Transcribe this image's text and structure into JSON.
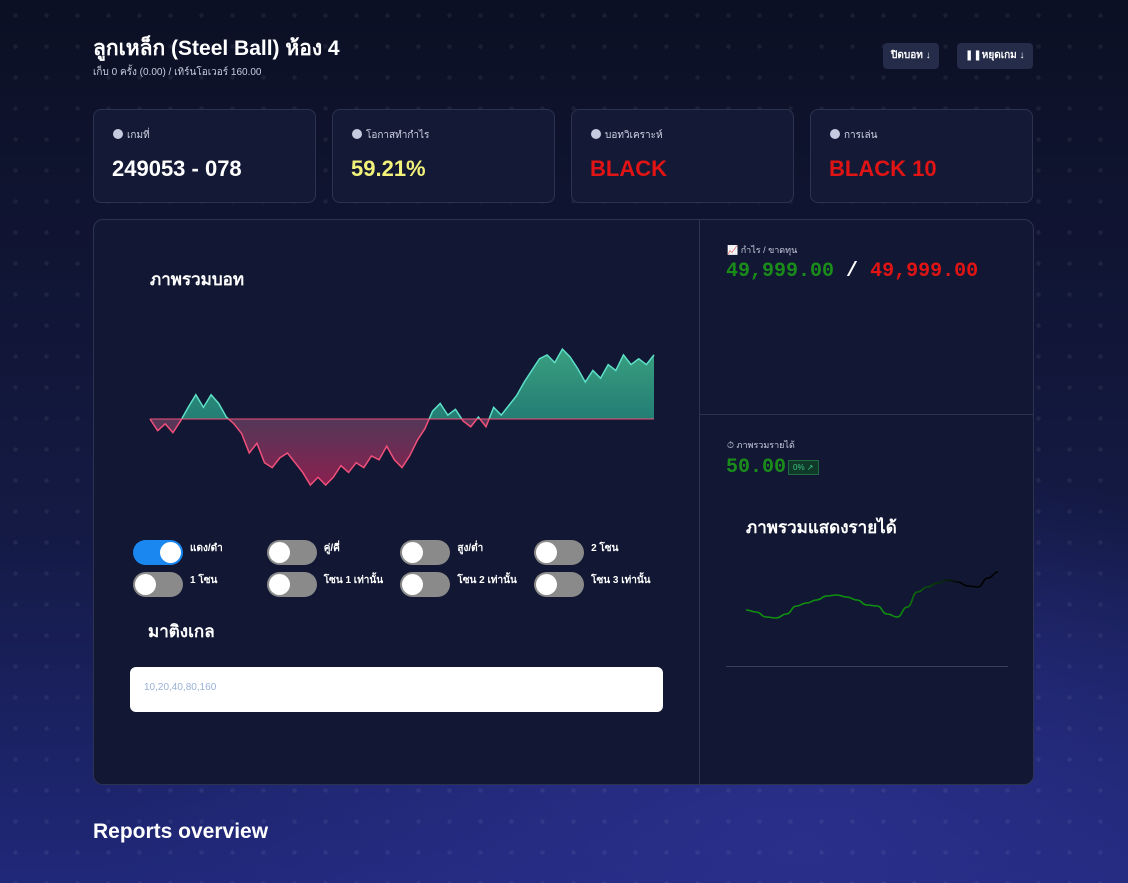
{
  "header": {
    "title": "ลูกเหล็ก (Steel Ball) ห้อง 4",
    "subtitle": "เก็บ 0 ครั้ง (0.00) / เทิร์นโอเวอร์ 160.00",
    "buttons": [
      "ปิดบอท",
      "หยุดเกม"
    ]
  },
  "cards": [
    {
      "label": "เกมที่",
      "value": "249053 - 078",
      "color": "#ffffff"
    },
    {
      "label": "โอกาสทำกำไร",
      "value": "59.21%",
      "color": "#f2f27a"
    },
    {
      "label": "บอทวิเคราะห์",
      "value": "BLACK",
      "color": "#e01414"
    },
    {
      "label": "การเล่น",
      "value": "BLACK 10",
      "color": "#e01414"
    }
  ],
  "bot_panel": {
    "title": "ภาพรวมบอท",
    "chart": {
      "type": "area",
      "ylim": [
        -70,
        70
      ],
      "up_color": "#5de0c8",
      "down_color": "#f0507a",
      "values": [
        0,
        -12,
        -5,
        -14,
        -2,
        12,
        25,
        12,
        25,
        16,
        2,
        -5,
        -15,
        -35,
        -25,
        -45,
        -50,
        -40,
        -35,
        -45,
        -55,
        -68,
        -60,
        -68,
        -60,
        -48,
        -55,
        -45,
        -50,
        -38,
        -42,
        -28,
        -42,
        -50,
        -38,
        -22,
        -10,
        8,
        16,
        4,
        10,
        -2,
        -8,
        2,
        -8,
        12,
        4,
        14,
        24,
        38,
        50,
        62,
        66,
        58,
        72,
        64,
        52,
        38,
        50,
        42,
        56,
        50,
        66,
        56,
        62,
        56,
        66
      ]
    },
    "toggles": [
      {
        "label": "แดง/ดำ",
        "on": true
      },
      {
        "label": "คู่/คี่",
        "on": false
      },
      {
        "label": "สูง/ต่ำ",
        "on": false
      },
      {
        "label": "2 โซน",
        "on": false
      },
      {
        "label": "1 โซน",
        "on": false
      },
      {
        "label": "โซน 1 เท่านั้น",
        "on": false
      },
      {
        "label": "โซน 2 เท่านั้น",
        "on": false
      },
      {
        "label": "โซน 3 เท่านั้น",
        "on": false
      }
    ],
    "martingale": {
      "title": "มาติงเกล",
      "placeholder": "10,20,40,80,160"
    }
  },
  "profit": {
    "label": "กำไร / ขาดทุน",
    "profit": "49,999.00",
    "separator": "/",
    "loss": "49,999.00"
  },
  "income": {
    "label": "ภาพรวมรายได้",
    "value": "50.00",
    "badge": "0%",
    "chart_title": "ภาพรวมแสดงรายได้",
    "chart": {
      "type": "line",
      "color": "#109010",
      "ylim": [
        0,
        60
      ],
      "values": [
        10,
        8,
        3,
        2,
        6,
        14,
        17,
        20,
        24,
        25,
        23,
        20,
        15,
        14,
        6,
        3,
        13,
        28,
        33,
        37,
        40,
        38,
        34,
        33,
        42,
        48
      ]
    }
  },
  "reports_title": "Reports overview"
}
